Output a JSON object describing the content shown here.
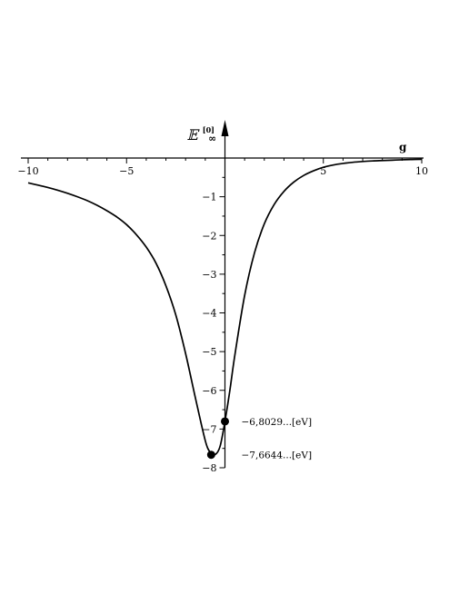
{
  "chart_data": {
    "type": "line",
    "title": "",
    "xlabel": "g",
    "ylabel": "𝔼",
    "ylabel_sub": "∞",
    "ylabel_sup": "[0]",
    "xlim": [
      -10,
      10
    ],
    "ylim": [
      -8,
      0
    ],
    "x_ticks": [
      -10,
      -5,
      5,
      10
    ],
    "x_tick_labels": [
      "−10",
      "−5",
      "5",
      "10"
    ],
    "y_ticks": [
      -1,
      -2,
      -3,
      -4,
      -5,
      -6,
      -7,
      -8
    ],
    "y_tick_labels": [
      "−1",
      "−2",
      "−3",
      "−4",
      "−5",
      "−6",
      "−7",
      "−8"
    ],
    "grid": false,
    "series": [
      {
        "x": [
          -10,
          -9.5,
          -9,
          -8.5,
          -8,
          -7.5,
          -7,
          -6.5,
          -6,
          -5.5,
          -5,
          -4.5,
          -4,
          -3.5,
          -3,
          -2.5,
          -2,
          -1.5,
          -1,
          -0.75,
          -0.5,
          -0.25,
          0,
          0.25,
          0.5,
          1,
          1.5,
          2,
          2.5,
          3,
          3.5,
          4,
          4.5,
          5,
          5.5,
          6,
          6.5,
          7,
          7.5,
          8,
          8.5,
          9,
          9.5,
          10
        ],
        "y": [
          -0.64,
          -0.7,
          -0.76,
          -0.83,
          -0.91,
          -1.0,
          -1.1,
          -1.22,
          -1.36,
          -1.52,
          -1.72,
          -1.98,
          -2.3,
          -2.72,
          -3.3,
          -4.05,
          -5.05,
          -6.2,
          -7.3,
          -7.6,
          -7.66,
          -7.45,
          -6.8,
          -6.0,
          -5.1,
          -3.55,
          -2.45,
          -1.7,
          -1.2,
          -0.86,
          -0.62,
          -0.45,
          -0.33,
          -0.24,
          -0.18,
          -0.14,
          -0.11,
          -0.09,
          -0.075,
          -0.065,
          -0.055,
          -0.045,
          -0.038,
          -0.032
        ]
      }
    ],
    "annotations": [
      {
        "x": 0,
        "y": -6.8029,
        "label": "−6,8029...[eV]"
      },
      {
        "x": -0.7,
        "y": -7.6644,
        "label": "−7,6644...[eV]"
      }
    ]
  }
}
